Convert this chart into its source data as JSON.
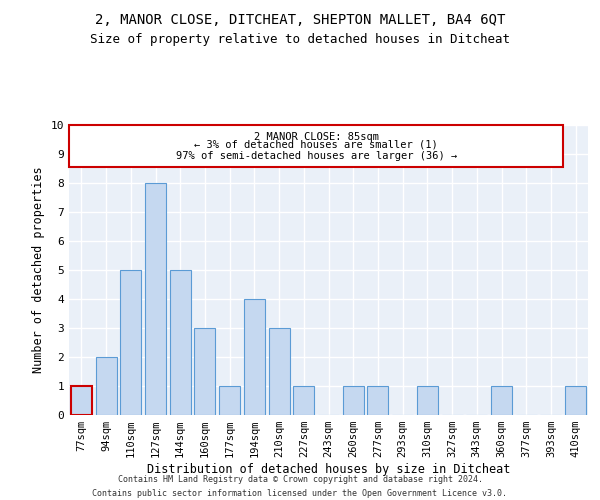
{
  "title": "2, MANOR CLOSE, DITCHEAT, SHEPTON MALLET, BA4 6QT",
  "subtitle": "Size of property relative to detached houses in Ditcheat",
  "xlabel": "Distribution of detached houses by size in Ditcheat",
  "ylabel": "Number of detached properties",
  "footer_line1": "Contains HM Land Registry data © Crown copyright and database right 2024.",
  "footer_line2": "Contains public sector information licensed under the Open Government Licence v3.0.",
  "categories": [
    "77sqm",
    "94sqm",
    "110sqm",
    "127sqm",
    "144sqm",
    "160sqm",
    "177sqm",
    "194sqm",
    "210sqm",
    "227sqm",
    "243sqm",
    "260sqm",
    "277sqm",
    "293sqm",
    "310sqm",
    "327sqm",
    "343sqm",
    "360sqm",
    "377sqm",
    "393sqm",
    "410sqm"
  ],
  "values": [
    1,
    2,
    5,
    8,
    5,
    3,
    1,
    4,
    3,
    1,
    0,
    1,
    1,
    0,
    1,
    0,
    0,
    1,
    0,
    0,
    1
  ],
  "bar_color": "#c5d8f0",
  "bar_edge_color": "#5b9bd5",
  "highlight_bar_index": 0,
  "highlight_bar_edge_color": "#cc0000",
  "annotation_text_line1": "2 MANOR CLOSE: 85sqm",
  "annotation_text_line2": "← 3% of detached houses are smaller (1)",
  "annotation_text_line3": "97% of semi-detached houses are larger (36) →",
  "ylim": [
    0,
    10
  ],
  "yticks": [
    0,
    1,
    2,
    3,
    4,
    5,
    6,
    7,
    8,
    9,
    10
  ],
  "bg_color": "#eaf0f8",
  "grid_color": "#ffffff",
  "title_fontsize": 10,
  "subtitle_fontsize": 9,
  "tick_fontsize": 7.5,
  "ylabel_fontsize": 8.5,
  "xlabel_fontsize": 8.5,
  "annotation_fontsize": 7.5
}
